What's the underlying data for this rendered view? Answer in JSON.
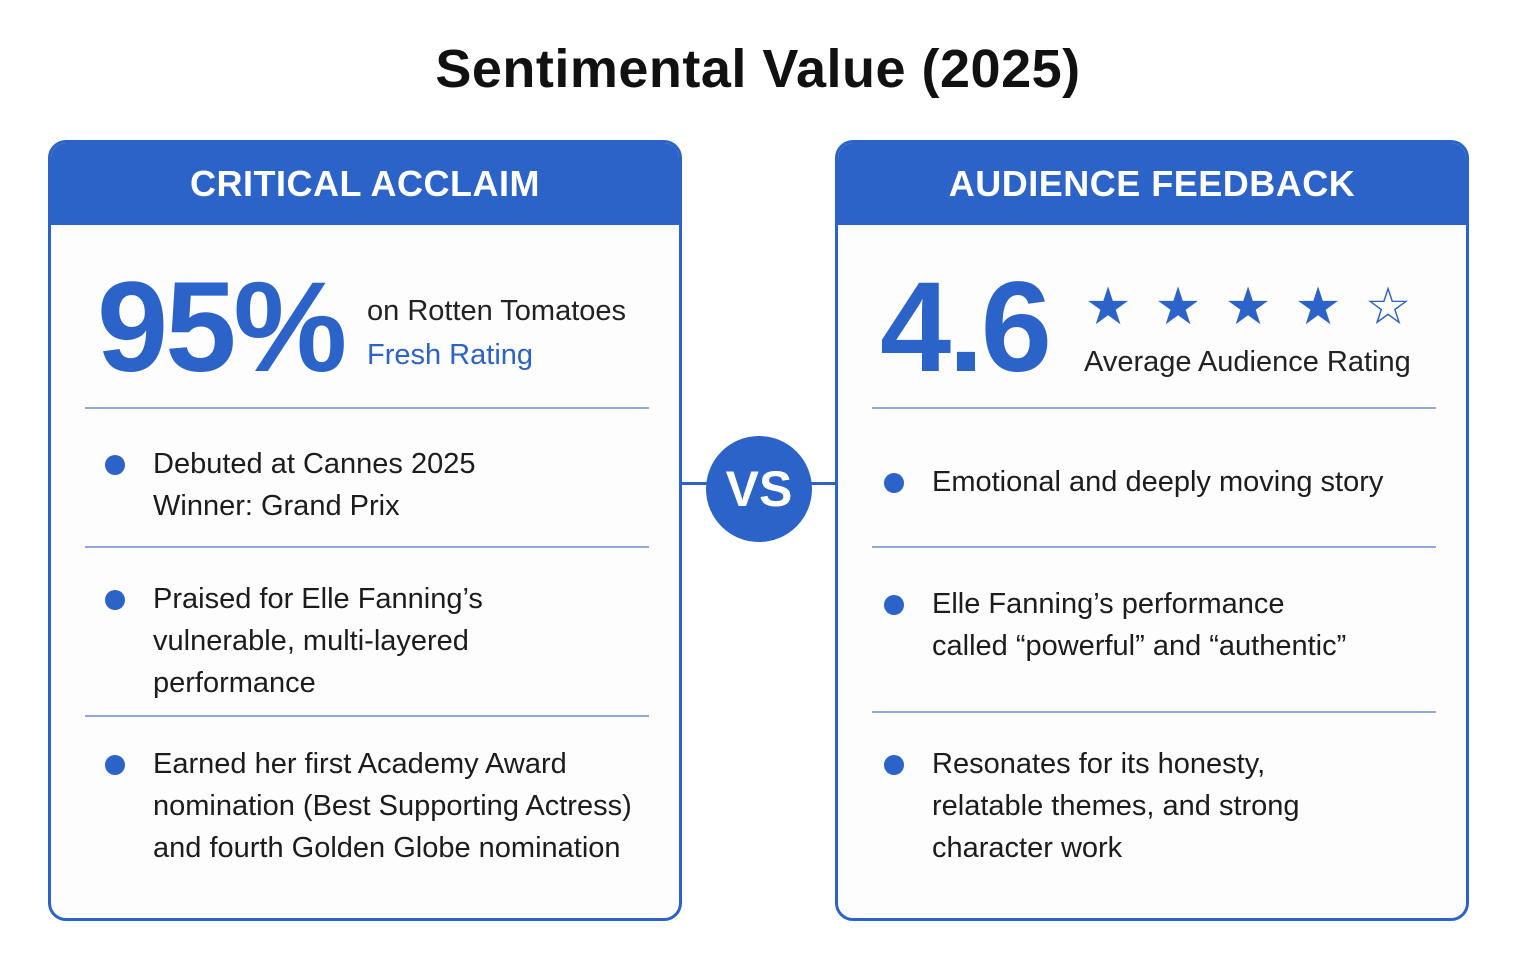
{
  "title": "Sentimental Value (2025)",
  "accent_color": "#2b63c8",
  "vs_label": "VS",
  "critical": {
    "header": "CRITICAL ACCLAIM",
    "score": "95%",
    "score_caption": "on Rotten Tomatoes",
    "score_subcaption": "Fresh Rating",
    "items": [
      {
        "text": "Debuted at Cannes 2025\nWinner: Grand Prix"
      },
      {
        "text": "Praised for Elle Fanning’s\nvulnerable, multi-layered\nperformance"
      },
      {
        "text": "Earned her first Academy Award\nnomination (Best Supporting Actress)\nand fourth Golden Globe nomination"
      }
    ]
  },
  "audience": {
    "header": "AUDIENCE FEEDBACK",
    "score": "4.6",
    "score_caption": "Average Audience Rating",
    "stars": {
      "filled": 4,
      "total": 5
    },
    "items": [
      {
        "text": "Emotional and deeply moving story"
      },
      {
        "text": "Elle Fanning’s performance\ncalled “powerful” and “authentic”"
      },
      {
        "text": "Resonates for its honesty,\nrelatable themes, and strong\ncharacter work"
      }
    ]
  }
}
